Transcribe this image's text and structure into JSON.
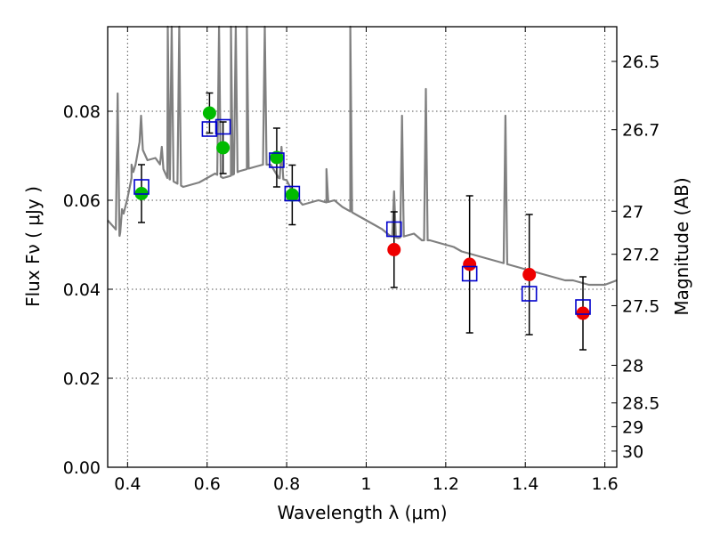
{
  "chart_data": {
    "type": "scatter",
    "xlabel": "Wavelength  λ (μm)",
    "ylabel": "Flux  Fν  ( μJy )",
    "y2label": "Magnitude (AB)",
    "xlim": [
      0.35,
      1.63
    ],
    "ylim": [
      0.0,
      0.099
    ],
    "grid": true,
    "x_ticks": [
      0.4,
      0.6,
      0.8,
      1.0,
      1.2,
      1.4,
      1.6
    ],
    "x_tick_labels": [
      "0.4",
      "0.6",
      "0.8",
      "1",
      "1.2",
      "1.4",
      "1.6"
    ],
    "y_ticks": [
      0.0,
      0.02,
      0.04,
      0.06,
      0.08
    ],
    "y_tick_labels": [
      "0.00",
      "0.02",
      "0.04",
      "0.06",
      "0.08"
    ],
    "y2_ticks": [
      {
        "label": "26.5",
        "mag": 26.5
      },
      {
        "label": "26.7",
        "mag": 26.7
      },
      {
        "label": "27",
        "mag": 27.0
      },
      {
        "label": "27.2",
        "mag": 27.2
      },
      {
        "label": "27.5",
        "mag": 27.5
      },
      {
        "label": "28",
        "mag": 28.0
      },
      {
        "label": "28.5",
        "mag": 28.5
      },
      {
        "label": "29",
        "mag": 29.0
      },
      {
        "label": "30",
        "mag": 30.0
      }
    ],
    "colors": {
      "model": "#808080",
      "green_points": "#00bb00",
      "red_points": "#ee0000",
      "model_photometry": "#0000cc",
      "errorbars": "#000000"
    },
    "model_spectrum": {
      "x": [
        0.35,
        0.37,
        0.38,
        0.39,
        0.4,
        0.41,
        0.42,
        0.43,
        0.45,
        0.47,
        0.49,
        0.5,
        0.52,
        0.54,
        0.56,
        0.58,
        0.6,
        0.62,
        0.64,
        0.66,
        0.68,
        0.7,
        0.72,
        0.74,
        0.76,
        0.78,
        0.8,
        0.82,
        0.84,
        0.86,
        0.88,
        0.9,
        0.92,
        0.94,
        0.96,
        0.98,
        1.0,
        1.02,
        1.04,
        1.06,
        1.08,
        1.1,
        1.12,
        1.14,
        1.16,
        1.18,
        1.2,
        1.22,
        1.24,
        1.26,
        1.28,
        1.3,
        1.32,
        1.34,
        1.36,
        1.38,
        1.4,
        1.42,
        1.44,
        1.46,
        1.48,
        1.5,
        1.52,
        1.54,
        1.56,
        1.58,
        1.6,
        1.63
      ],
      "y": [
        0.0555,
        0.0535,
        0.052,
        0.057,
        0.0605,
        0.065,
        0.068,
        0.073,
        0.069,
        0.0695,
        0.067,
        0.065,
        0.064,
        0.063,
        0.0635,
        0.064,
        0.065,
        0.066,
        0.065,
        0.0655,
        0.0665,
        0.067,
        0.0675,
        0.068,
        0.068,
        0.065,
        0.0645,
        0.061,
        0.059,
        0.0595,
        0.06,
        0.0595,
        0.06,
        0.0585,
        0.0575,
        0.0565,
        0.0555,
        0.0545,
        0.0535,
        0.052,
        0.0515,
        0.052,
        0.0525,
        0.051,
        0.051,
        0.0505,
        0.05,
        0.0495,
        0.0485,
        0.048,
        0.0475,
        0.047,
        0.0465,
        0.046,
        0.0455,
        0.045,
        0.0445,
        0.044,
        0.0435,
        0.043,
        0.0425,
        0.042,
        0.042,
        0.0415,
        0.041,
        0.041,
        0.041,
        0.042
      ]
    },
    "emission_lines": [
      {
        "x": 0.375,
        "peak": 0.084
      },
      {
        "x": 0.386,
        "peak": 0.058
      },
      {
        "x": 0.41,
        "peak": 0.068
      },
      {
        "x": 0.434,
        "peak": 0.079
      },
      {
        "x": 0.486,
        "peak": 0.072
      },
      {
        "x": 0.501,
        "peak": 0.099
      },
      {
        "x": 0.511,
        "peak": 0.099
      },
      {
        "x": 0.53,
        "peak": 0.099
      },
      {
        "x": 0.63,
        "peak": 0.099
      },
      {
        "x": 0.66,
        "peak": 0.099
      },
      {
        "x": 0.672,
        "peak": 0.099
      },
      {
        "x": 0.7,
        "peak": 0.099
      },
      {
        "x": 0.745,
        "peak": 0.099
      },
      {
        "x": 0.787,
        "peak": 0.072
      },
      {
        "x": 0.9,
        "peak": 0.067
      },
      {
        "x": 0.96,
        "peak": 0.099
      },
      {
        "x": 1.07,
        "peak": 0.062
      },
      {
        "x": 1.09,
        "peak": 0.079
      },
      {
        "x": 1.15,
        "peak": 0.085
      },
      {
        "x": 1.35,
        "peak": 0.079
      }
    ],
    "series": [
      {
        "marker": "circle",
        "color": "#00bb00",
        "points": [
          {
            "x": 0.435,
            "y": 0.0615,
            "err": 0.0065
          },
          {
            "x": 0.606,
            "y": 0.0796,
            "err": 0.0045
          },
          {
            "x": 0.64,
            "y": 0.0718,
            "err": 0.0058
          },
          {
            "x": 0.775,
            "y": 0.0696,
            "err": 0.0066
          },
          {
            "x": 0.814,
            "y": 0.0612,
            "err": 0.0067
          }
        ]
      },
      {
        "marker": "circle",
        "color": "#ee0000",
        "points": [
          {
            "x": 1.07,
            "y": 0.0489,
            "err": 0.0085
          },
          {
            "x": 1.26,
            "y": 0.0456,
            "err": 0.0154
          },
          {
            "x": 1.41,
            "y": 0.0433,
            "err": 0.0135
          },
          {
            "x": 1.545,
            "y": 0.0346,
            "err": 0.0082
          }
        ]
      },
      {
        "marker": "square",
        "color": "#0000cc",
        "points": [
          {
            "x": 0.435,
            "y": 0.063
          },
          {
            "x": 0.606,
            "y": 0.076
          },
          {
            "x": 0.64,
            "y": 0.0765
          },
          {
            "x": 0.775,
            "y": 0.069
          },
          {
            "x": 0.814,
            "y": 0.0615
          },
          {
            "x": 1.07,
            "y": 0.0535
          },
          {
            "x": 1.26,
            "y": 0.0435
          },
          {
            "x": 1.41,
            "y": 0.039
          },
          {
            "x": 1.545,
            "y": 0.036
          }
        ]
      }
    ]
  }
}
